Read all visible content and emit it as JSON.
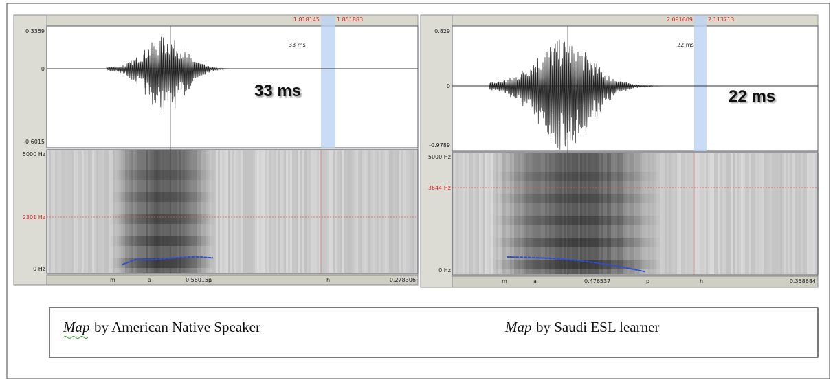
{
  "panels": [
    {
      "selection": {
        "start": "1.818145",
        "end": "1.851883"
      },
      "waveform": {
        "max": "0.3359",
        "zero": "0",
        "min": "-0.6015",
        "duration_small": "33 ms",
        "duration_large": "33 ms"
      },
      "spectrogram": {
        "top": "5000 Hz",
        "cursor": "2301 Hz",
        "bottom": "0 Hz"
      },
      "tier": {
        "labels": [
          "m",
          "a",
          "p",
          "h"
        ],
        "time": "0.580151",
        "total": "0.278306"
      }
    },
    {
      "selection": {
        "start": "2.091609",
        "end": "2.113713"
      },
      "waveform": {
        "max": "0.829",
        "zero": "0",
        "min": "-0.9789",
        "duration_small": "22 ms",
        "duration_large": "22 ms"
      },
      "spectrogram": {
        "top": "5000 Hz",
        "cursor": "3644 Hz",
        "bottom": "0 Hz"
      },
      "tier": {
        "labels": [
          "m",
          "a",
          "p",
          "h"
        ],
        "time": "0.476537",
        "total": "0.358684"
      }
    }
  ],
  "caption": [
    {
      "italic": "Map",
      "text": "by American Native Speaker"
    },
    {
      "italic": "Map",
      "text": "by Saudi ESL learner"
    }
  ]
}
